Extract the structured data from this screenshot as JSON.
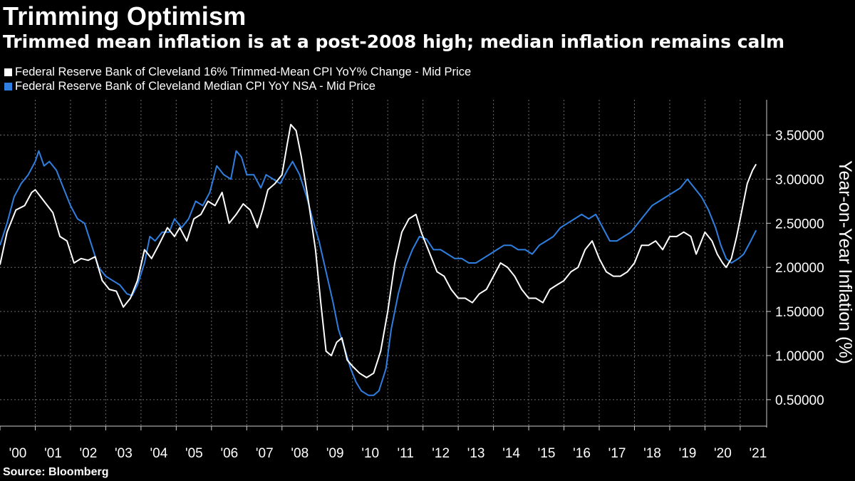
{
  "title": "Trimming Optimism",
  "subtitle": "Trimmed mean inflation is at a post-2008 high; median inflation remains calm",
  "source": "Source: Bloomberg",
  "colors": {
    "background": "#000000",
    "trimmed": "#ffffff",
    "median": "#2f7fe0",
    "grid": "#6b6b6b"
  },
  "chart_data": {
    "type": "line",
    "ylabel": "Year-on-Year Inflation (%)",
    "xlim": [
      2000.0,
      2021.75
    ],
    "ylim": [
      0.2,
      3.9
    ],
    "y_ticks": [
      0.5,
      1.0,
      1.5,
      2.0,
      2.5,
      3.0,
      3.5
    ],
    "y_tick_labels": [
      "0.50000",
      "1.00000",
      "1.50000",
      "2.00000",
      "2.50000",
      "3.00000",
      "3.50000"
    ],
    "x_ticks": [
      2000,
      2001,
      2002,
      2003,
      2004,
      2005,
      2006,
      2007,
      2008,
      2009,
      2010,
      2011,
      2012,
      2013,
      2014,
      2015,
      2016,
      2017,
      2018,
      2019,
      2020,
      2021
    ],
    "x_tick_labels": [
      "'00",
      "'01",
      "'02",
      "'03",
      "'04",
      "'05",
      "'06",
      "'07",
      "'08",
      "'09",
      "'10",
      "'11",
      "'12",
      "'13",
      "'14",
      "'15",
      "'16",
      "'17",
      "'18",
      "'19",
      "'20",
      "'21"
    ],
    "grid": true,
    "legend_position": "top-left",
    "series": [
      {
        "name": "Federal Reserve Bank of Cleveland 16% Trimmed-Mean CPI YoY% Change - Mid Price",
        "color": "#ffffff",
        "points": [
          [
            2000.0,
            2.03
          ],
          [
            2000.2,
            2.4
          ],
          [
            2000.45,
            2.65
          ],
          [
            2000.7,
            2.7
          ],
          [
            2000.9,
            2.85
          ],
          [
            2001.0,
            2.88
          ],
          [
            2001.25,
            2.75
          ],
          [
            2001.5,
            2.62
          ],
          [
            2001.7,
            2.35
          ],
          [
            2001.9,
            2.3
          ],
          [
            2002.1,
            2.05
          ],
          [
            2002.3,
            2.1
          ],
          [
            2002.5,
            2.08
          ],
          [
            2002.7,
            2.12
          ],
          [
            2002.9,
            1.85
          ],
          [
            2003.1,
            1.75
          ],
          [
            2003.3,
            1.73
          ],
          [
            2003.5,
            1.55
          ],
          [
            2003.7,
            1.65
          ],
          [
            2003.9,
            1.85
          ],
          [
            2004.1,
            2.2
          ],
          [
            2004.3,
            2.1
          ],
          [
            2004.5,
            2.25
          ],
          [
            2004.75,
            2.45
          ],
          [
            2004.95,
            2.35
          ],
          [
            2005.1,
            2.45
          ],
          [
            2005.3,
            2.3
          ],
          [
            2005.5,
            2.55
          ],
          [
            2005.7,
            2.6
          ],
          [
            2005.9,
            2.75
          ],
          [
            2006.1,
            2.7
          ],
          [
            2006.3,
            2.85
          ],
          [
            2006.5,
            2.5
          ],
          [
            2006.7,
            2.6
          ],
          [
            2006.9,
            2.72
          ],
          [
            2007.1,
            2.65
          ],
          [
            2007.3,
            2.45
          ],
          [
            2007.45,
            2.65
          ],
          [
            2007.6,
            2.88
          ],
          [
            2007.8,
            2.95
          ],
          [
            2008.0,
            3.05
          ],
          [
            2008.15,
            3.4
          ],
          [
            2008.25,
            3.62
          ],
          [
            2008.4,
            3.55
          ],
          [
            2008.55,
            3.25
          ],
          [
            2008.75,
            2.75
          ],
          [
            2008.95,
            2.2
          ],
          [
            2009.1,
            1.6
          ],
          [
            2009.25,
            1.05
          ],
          [
            2009.4,
            1.0
          ],
          [
            2009.55,
            1.15
          ],
          [
            2009.7,
            1.2
          ],
          [
            2009.85,
            0.95
          ],
          [
            2010.0,
            0.88
          ],
          [
            2010.2,
            0.8
          ],
          [
            2010.4,
            0.75
          ],
          [
            2010.6,
            0.8
          ],
          [
            2010.8,
            1.05
          ],
          [
            2011.0,
            1.5
          ],
          [
            2011.2,
            2.05
          ],
          [
            2011.4,
            2.4
          ],
          [
            2011.6,
            2.55
          ],
          [
            2011.8,
            2.6
          ],
          [
            2011.95,
            2.4
          ],
          [
            2012.2,
            2.15
          ],
          [
            2012.4,
            1.95
          ],
          [
            2012.6,
            1.9
          ],
          [
            2012.8,
            1.75
          ],
          [
            2013.0,
            1.65
          ],
          [
            2013.2,
            1.65
          ],
          [
            2013.4,
            1.6
          ],
          [
            2013.6,
            1.7
          ],
          [
            2013.8,
            1.75
          ],
          [
            2014.0,
            1.9
          ],
          [
            2014.2,
            2.05
          ],
          [
            2014.4,
            2.0
          ],
          [
            2014.6,
            1.9
          ],
          [
            2014.8,
            1.75
          ],
          [
            2015.0,
            1.65
          ],
          [
            2015.2,
            1.65
          ],
          [
            2015.4,
            1.6
          ],
          [
            2015.6,
            1.75
          ],
          [
            2015.8,
            1.8
          ],
          [
            2016.0,
            1.85
          ],
          [
            2016.2,
            1.95
          ],
          [
            2016.4,
            2.0
          ],
          [
            2016.6,
            2.2
          ],
          [
            2016.8,
            2.3
          ],
          [
            2017.0,
            2.1
          ],
          [
            2017.2,
            1.95
          ],
          [
            2017.4,
            1.9
          ],
          [
            2017.6,
            1.9
          ],
          [
            2017.8,
            1.95
          ],
          [
            2018.0,
            2.05
          ],
          [
            2018.2,
            2.25
          ],
          [
            2018.4,
            2.25
          ],
          [
            2018.6,
            2.3
          ],
          [
            2018.8,
            2.2
          ],
          [
            2019.0,
            2.35
          ],
          [
            2019.2,
            2.35
          ],
          [
            2019.4,
            2.4
          ],
          [
            2019.6,
            2.35
          ],
          [
            2019.75,
            2.15
          ],
          [
            2019.9,
            2.3
          ],
          [
            2020.0,
            2.4
          ],
          [
            2020.2,
            2.3
          ],
          [
            2020.35,
            2.15
          ],
          [
            2020.5,
            2.05
          ],
          [
            2020.6,
            2.0
          ],
          [
            2020.75,
            2.1
          ],
          [
            2020.9,
            2.35
          ],
          [
            2021.05,
            2.65
          ],
          [
            2021.2,
            2.95
          ],
          [
            2021.35,
            3.1
          ],
          [
            2021.45,
            3.17
          ]
        ]
      },
      {
        "name": "Federal Reserve Bank of Cleveland Median CPI YoY NSA - Mid Price",
        "color": "#2f7fe0",
        "points": [
          [
            2000.0,
            2.25
          ],
          [
            2000.2,
            2.5
          ],
          [
            2000.4,
            2.8
          ],
          [
            2000.6,
            2.95
          ],
          [
            2000.8,
            3.05
          ],
          [
            2001.0,
            3.2
          ],
          [
            2001.1,
            3.32
          ],
          [
            2001.25,
            3.15
          ],
          [
            2001.4,
            3.2
          ],
          [
            2001.6,
            3.1
          ],
          [
            2001.8,
            2.9
          ],
          [
            2002.0,
            2.7
          ],
          [
            2002.2,
            2.55
          ],
          [
            2002.4,
            2.5
          ],
          [
            2002.6,
            2.25
          ],
          [
            2002.8,
            2.0
          ],
          [
            2003.0,
            1.9
          ],
          [
            2003.2,
            1.85
          ],
          [
            2003.4,
            1.8
          ],
          [
            2003.6,
            1.7
          ],
          [
            2003.75,
            1.68
          ],
          [
            2003.9,
            1.8
          ],
          [
            2004.1,
            2.05
          ],
          [
            2004.25,
            2.35
          ],
          [
            2004.4,
            2.3
          ],
          [
            2004.6,
            2.4
          ],
          [
            2004.8,
            2.4
          ],
          [
            2004.95,
            2.55
          ],
          [
            2005.15,
            2.45
          ],
          [
            2005.35,
            2.55
          ],
          [
            2005.55,
            2.75
          ],
          [
            2005.75,
            2.7
          ],
          [
            2005.95,
            2.85
          ],
          [
            2006.15,
            3.15
          ],
          [
            2006.35,
            3.05
          ],
          [
            2006.55,
            3.0
          ],
          [
            2006.7,
            3.32
          ],
          [
            2006.85,
            3.25
          ],
          [
            2007.0,
            3.05
          ],
          [
            2007.2,
            3.05
          ],
          [
            2007.4,
            2.9
          ],
          [
            2007.55,
            3.05
          ],
          [
            2007.75,
            3.0
          ],
          [
            2007.95,
            2.95
          ],
          [
            2008.15,
            3.1
          ],
          [
            2008.3,
            3.2
          ],
          [
            2008.5,
            3.05
          ],
          [
            2008.7,
            2.8
          ],
          [
            2008.9,
            2.5
          ],
          [
            2009.05,
            2.3
          ],
          [
            2009.25,
            1.95
          ],
          [
            2009.45,
            1.6
          ],
          [
            2009.6,
            1.3
          ],
          [
            2009.8,
            1.05
          ],
          [
            2009.95,
            0.85
          ],
          [
            2010.1,
            0.7
          ],
          [
            2010.25,
            0.6
          ],
          [
            2010.45,
            0.55
          ],
          [
            2010.6,
            0.55
          ],
          [
            2010.75,
            0.6
          ],
          [
            2010.95,
            0.85
          ],
          [
            2011.1,
            1.3
          ],
          [
            2011.3,
            1.7
          ],
          [
            2011.5,
            2.0
          ],
          [
            2011.7,
            2.2
          ],
          [
            2011.9,
            2.35
          ],
          [
            2012.1,
            2.32
          ],
          [
            2012.3,
            2.2
          ],
          [
            2012.5,
            2.2
          ],
          [
            2012.7,
            2.15
          ],
          [
            2012.9,
            2.1
          ],
          [
            2013.1,
            2.1
          ],
          [
            2013.3,
            2.05
          ],
          [
            2013.5,
            2.05
          ],
          [
            2013.7,
            2.1
          ],
          [
            2013.9,
            2.15
          ],
          [
            2014.1,
            2.2
          ],
          [
            2014.3,
            2.25
          ],
          [
            2014.5,
            2.25
          ],
          [
            2014.7,
            2.2
          ],
          [
            2014.9,
            2.2
          ],
          [
            2015.1,
            2.15
          ],
          [
            2015.3,
            2.25
          ],
          [
            2015.5,
            2.3
          ],
          [
            2015.7,
            2.35
          ],
          [
            2015.9,
            2.45
          ],
          [
            2016.1,
            2.5
          ],
          [
            2016.3,
            2.55
          ],
          [
            2016.5,
            2.6
          ],
          [
            2016.7,
            2.55
          ],
          [
            2016.9,
            2.6
          ],
          [
            2017.1,
            2.45
          ],
          [
            2017.3,
            2.3
          ],
          [
            2017.5,
            2.3
          ],
          [
            2017.7,
            2.35
          ],
          [
            2017.9,
            2.4
          ],
          [
            2018.1,
            2.5
          ],
          [
            2018.3,
            2.6
          ],
          [
            2018.5,
            2.7
          ],
          [
            2018.7,
            2.75
          ],
          [
            2018.9,
            2.8
          ],
          [
            2019.1,
            2.85
          ],
          [
            2019.3,
            2.9
          ],
          [
            2019.5,
            3.0
          ],
          [
            2019.7,
            2.9
          ],
          [
            2019.9,
            2.8
          ],
          [
            2020.1,
            2.65
          ],
          [
            2020.3,
            2.45
          ],
          [
            2020.45,
            2.25
          ],
          [
            2020.6,
            2.1
          ],
          [
            2020.75,
            2.05
          ],
          [
            2020.95,
            2.1
          ],
          [
            2021.1,
            2.15
          ],
          [
            2021.3,
            2.3
          ],
          [
            2021.45,
            2.42
          ]
        ]
      }
    ]
  }
}
